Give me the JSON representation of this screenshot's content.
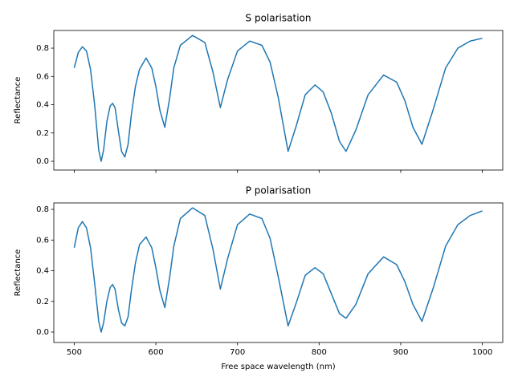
{
  "chart_data": [
    {
      "type": "line",
      "title": "S polarisation",
      "y_label": "Reflectance",
      "x": [
        500,
        505,
        510,
        515,
        520,
        525,
        530,
        533,
        536,
        540,
        544,
        547,
        550,
        554,
        558,
        562,
        566,
        570,
        575,
        580,
        588,
        595,
        600,
        605,
        611,
        617,
        622,
        630,
        645,
        660,
        670,
        679,
        688,
        700,
        715,
        730,
        740,
        750,
        762,
        772,
        783,
        795,
        805,
        815,
        825,
        833,
        845,
        860,
        879,
        895,
        905,
        915,
        926,
        940,
        955,
        970,
        985,
        1000
      ],
      "series": [
        {
          "color": "#1f77b4",
          "values": [
            0.66,
            0.77,
            0.81,
            0.78,
            0.65,
            0.4,
            0.08,
            0.0,
            0.08,
            0.28,
            0.39,
            0.41,
            0.38,
            0.22,
            0.07,
            0.03,
            0.12,
            0.33,
            0.53,
            0.65,
            0.73,
            0.66,
            0.53,
            0.36,
            0.24,
            0.45,
            0.66,
            0.82,
            0.89,
            0.84,
            0.63,
            0.38,
            0.58,
            0.78,
            0.85,
            0.82,
            0.7,
            0.45,
            0.07,
            0.25,
            0.47,
            0.54,
            0.49,
            0.34,
            0.14,
            0.07,
            0.22,
            0.47,
            0.61,
            0.56,
            0.43,
            0.24,
            0.12,
            0.37,
            0.66,
            0.8,
            0.85,
            0.87
          ]
        }
      ],
      "xlim": [
        475,
        1025
      ],
      "ylim": [
        -0.062,
        0.925
      ],
      "xticks": [
        500,
        600,
        700,
        800,
        900,
        1000
      ],
      "yticks": [
        {
          "value": 0,
          "label": "0.0"
        },
        0.2,
        0.4,
        0.6,
        0.8
      ]
    },
    {
      "type": "line",
      "title": "P polarisation",
      "y_label": "Reflectance",
      "x_label": "Free space wavelength (nm)",
      "x": [
        500,
        505,
        510,
        515,
        520,
        525,
        530,
        533,
        536,
        540,
        544,
        547,
        550,
        554,
        558,
        562,
        566,
        570,
        575,
        580,
        588,
        595,
        600,
        605,
        611,
        617,
        622,
        630,
        645,
        660,
        670,
        679,
        688,
        700,
        715,
        730,
        740,
        750,
        762,
        772,
        783,
        795,
        805,
        815,
        825,
        833,
        845,
        860,
        879,
        895,
        905,
        915,
        926,
        940,
        955,
        970,
        985,
        1000
      ],
      "series": [
        {
          "color": "#1f77b4",
          "values": [
            0.55,
            0.68,
            0.72,
            0.68,
            0.55,
            0.32,
            0.07,
            0.0,
            0.06,
            0.2,
            0.29,
            0.31,
            0.28,
            0.15,
            0.06,
            0.04,
            0.1,
            0.27,
            0.45,
            0.57,
            0.62,
            0.55,
            0.42,
            0.27,
            0.16,
            0.36,
            0.56,
            0.74,
            0.81,
            0.76,
            0.54,
            0.28,
            0.48,
            0.7,
            0.77,
            0.74,
            0.61,
            0.36,
            0.04,
            0.19,
            0.37,
            0.42,
            0.38,
            0.25,
            0.12,
            0.09,
            0.18,
            0.38,
            0.49,
            0.44,
            0.33,
            0.18,
            0.07,
            0.29,
            0.56,
            0.7,
            0.76,
            0.79
          ]
        }
      ],
      "xlim": [
        475,
        1025
      ],
      "ylim": [
        -0.068,
        0.842
      ],
      "xticks": [
        500,
        600,
        700,
        800,
        900,
        1000
      ],
      "yticks": [
        {
          "value": 0,
          "label": "0.0"
        },
        0.2,
        0.4,
        0.6,
        0.8
      ]
    }
  ]
}
